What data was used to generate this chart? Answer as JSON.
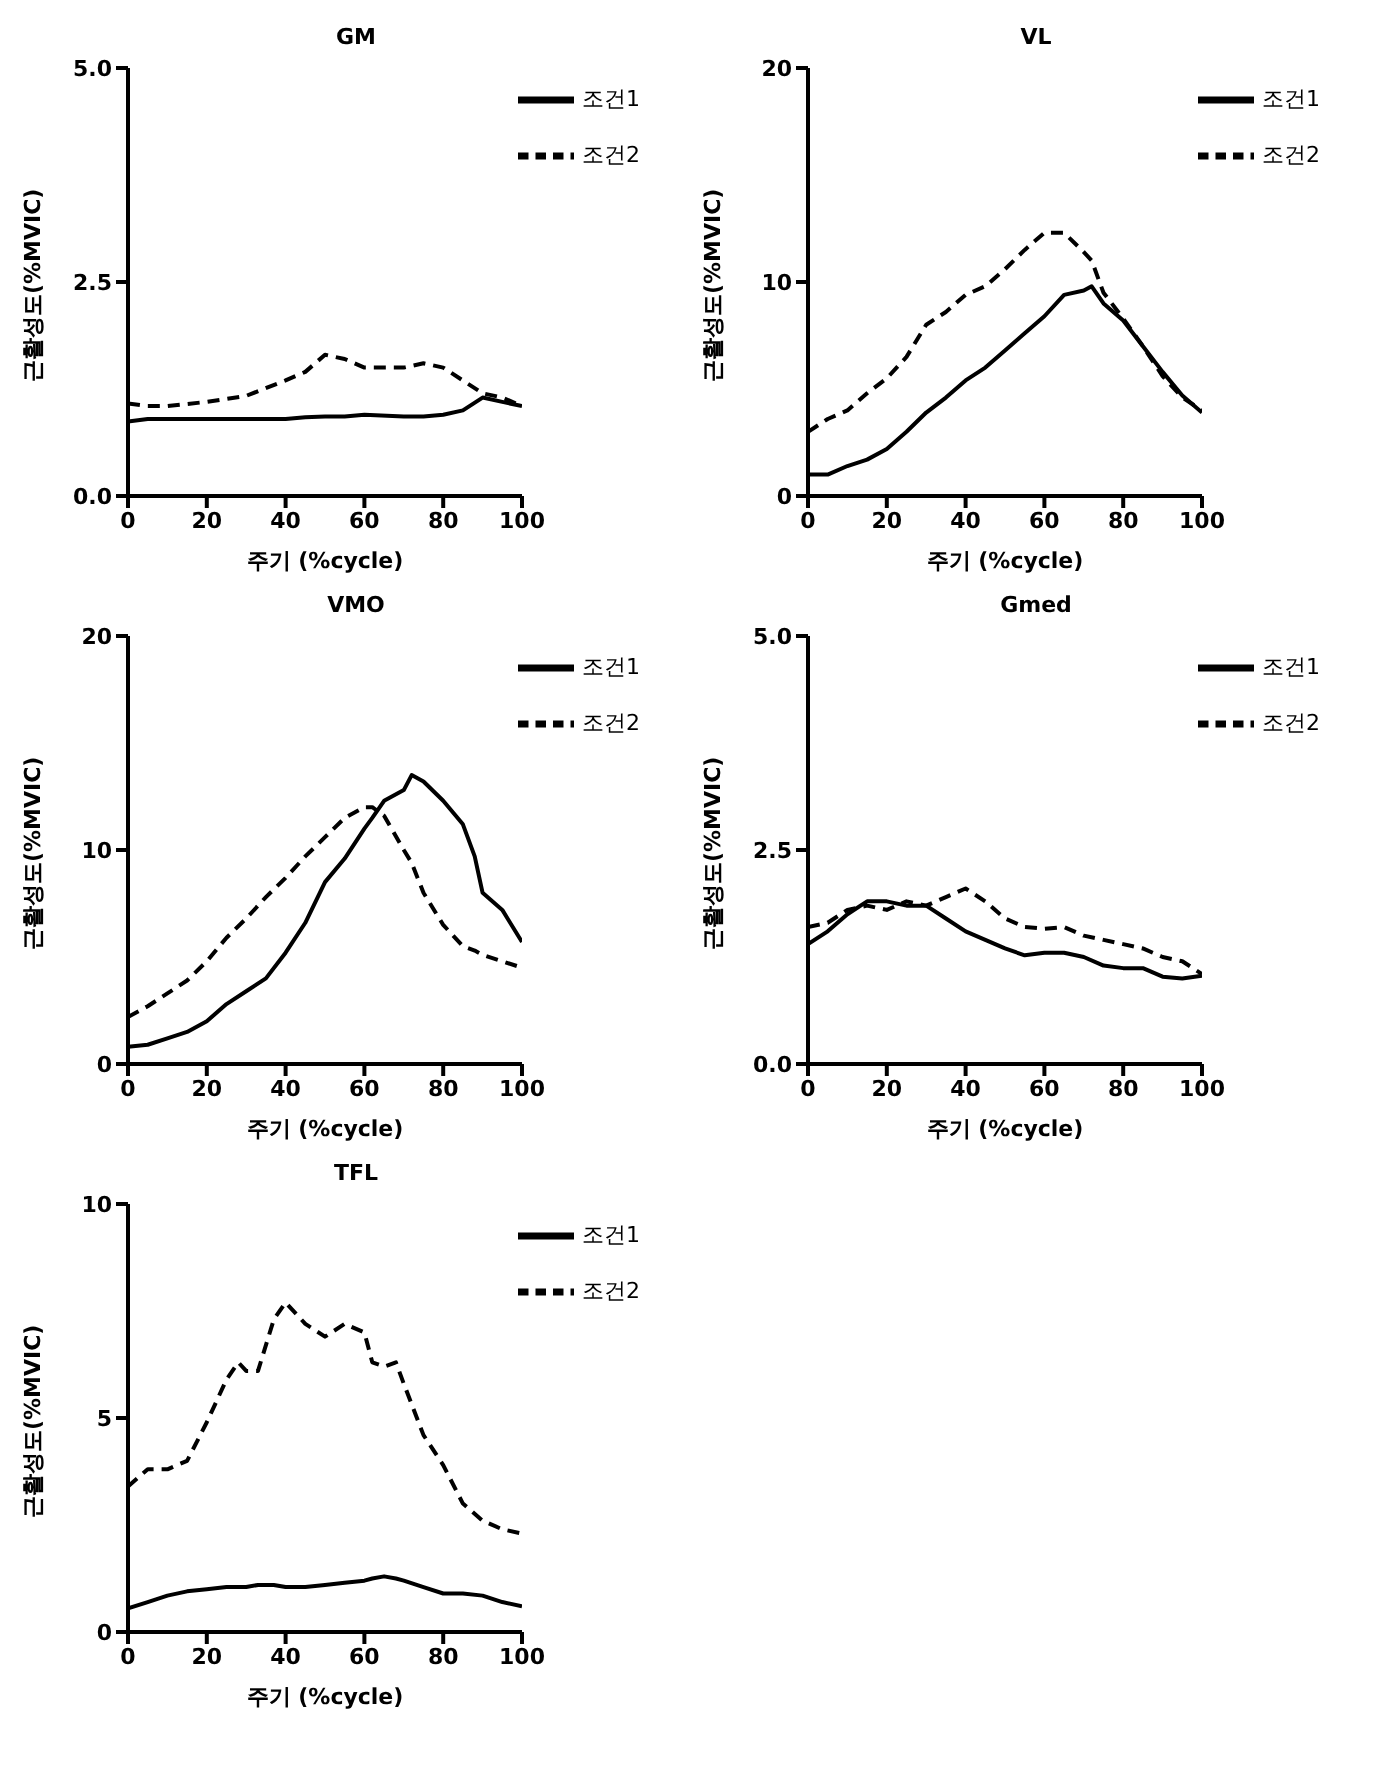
{
  "chart_data": [
    {
      "type": "line",
      "title": "GM",
      "xlabel": "주기 (%cycle)",
      "ylabel": "근활성도(%MVIC)",
      "xlim": [
        0,
        100
      ],
      "xticks": [
        0,
        20,
        40,
        60,
        80,
        100
      ],
      "ylim": [
        0,
        5
      ],
      "yticks": [
        {
          "value": 0,
          "label": "0.0"
        },
        {
          "value": 2.5,
          "label": "2.5"
        },
        {
          "value": 5,
          "label": "5.0"
        }
      ],
      "legend": "top right",
      "marker": "none",
      "x": [
        0,
        5,
        10,
        20,
        30,
        40,
        45,
        50,
        55,
        60,
        70,
        75,
        80,
        85,
        90,
        95,
        100
      ],
      "series": [
        {
          "name": "조건1",
          "color": "#000000",
          "line_style": "solid",
          "values": [
            0.87,
            0.9,
            0.9,
            0.9,
            0.9,
            0.9,
            0.92,
            0.93,
            0.93,
            0.95,
            0.93,
            0.93,
            0.95,
            1.0,
            1.15,
            1.1,
            1.05
          ]
        },
        {
          "name": "조건2",
          "color": "#000000",
          "line_style": "dashed",
          "values": [
            1.08,
            1.05,
            1.05,
            1.1,
            1.17,
            1.35,
            1.45,
            1.65,
            1.6,
            1.5,
            1.5,
            1.55,
            1.5,
            1.35,
            1.2,
            1.15,
            1.05
          ]
        }
      ]
    },
    {
      "type": "line",
      "title": "VL",
      "xlabel": "주기 (%cycle)",
      "ylabel": "근활성도(%MVIC)",
      "xlim": [
        0,
        100
      ],
      "xticks": [
        0,
        20,
        40,
        60,
        80,
        100
      ],
      "ylim": [
        0,
        20
      ],
      "yticks": [
        0,
        10,
        20
      ],
      "legend": "top right",
      "marker": "none",
      "x": [
        0,
        5,
        10,
        15,
        20,
        25,
        30,
        35,
        40,
        45,
        50,
        55,
        60,
        65,
        70,
        72,
        75,
        80,
        85,
        90,
        95,
        100
      ],
      "series": [
        {
          "name": "조건1",
          "color": "#000000",
          "line_style": "solid",
          "values": [
            1.0,
            1.0,
            1.4,
            1.7,
            2.2,
            3.0,
            3.9,
            4.6,
            5.4,
            6.0,
            6.8,
            7.6,
            8.4,
            9.4,
            9.6,
            9.8,
            9.0,
            8.2,
            7.0,
            5.8,
            4.7,
            3.9
          ]
        },
        {
          "name": "조건2",
          "color": "#000000",
          "line_style": "dashed",
          "values": [
            3.0,
            3.6,
            4.0,
            4.8,
            5.5,
            6.5,
            8.0,
            8.6,
            9.4,
            9.8,
            10.6,
            11.5,
            12.3,
            12.3,
            11.4,
            11.0,
            9.5,
            8.3,
            7.0,
            5.6,
            4.6,
            4.0
          ]
        }
      ]
    },
    {
      "type": "line",
      "title": "VMO",
      "xlabel": "주기 (%cycle)",
      "ylabel": "근활성도(%MVIC)",
      "xlim": [
        0,
        100
      ],
      "xticks": [
        0,
        20,
        40,
        60,
        80,
        100
      ],
      "ylim": [
        0,
        20
      ],
      "yticks": [
        0,
        10,
        20
      ],
      "legend": "top right",
      "marker": "none",
      "x": [
        0,
        5,
        10,
        15,
        20,
        25,
        30,
        35,
        40,
        45,
        50,
        55,
        60,
        62,
        65,
        70,
        72,
        75,
        80,
        85,
        88,
        90,
        95,
        100
      ],
      "series": [
        {
          "name": "조건1",
          "color": "#000000",
          "line_style": "solid",
          "values": [
            0.8,
            0.9,
            1.2,
            1.5,
            2.0,
            2.8,
            3.4,
            4.0,
            5.2,
            6.6,
            8.5,
            9.6,
            11.0,
            11.5,
            12.3,
            12.8,
            13.5,
            13.2,
            12.3,
            11.2,
            9.7,
            8.0,
            7.2,
            5.7
          ]
        },
        {
          "name": "조건2",
          "color": "#000000",
          "line_style": "dashed",
          "values": [
            2.2,
            2.7,
            3.3,
            3.9,
            4.8,
            5.9,
            6.8,
            7.8,
            8.7,
            9.7,
            10.6,
            11.5,
            12.0,
            12.0,
            11.6,
            10.0,
            9.4,
            8.0,
            6.5,
            5.5,
            5.3,
            5.1,
            4.8,
            4.5
          ]
        }
      ]
    },
    {
      "type": "line",
      "title": "Gmed",
      "xlabel": "주기 (%cycle)",
      "ylabel": "근활성도(%MVIC)",
      "xlim": [
        0,
        100
      ],
      "xticks": [
        0,
        20,
        40,
        60,
        80,
        100
      ],
      "ylim": [
        0,
        5
      ],
      "yticks": [
        {
          "value": 0,
          "label": "0.0"
        },
        {
          "value": 2.5,
          "label": "2.5"
        },
        {
          "value": 5,
          "label": "5.0"
        }
      ],
      "legend": "top right",
      "marker": "none",
      "x": [
        0,
        5,
        10,
        15,
        20,
        25,
        30,
        35,
        40,
        45,
        50,
        55,
        60,
        65,
        70,
        75,
        80,
        85,
        90,
        95,
        100
      ],
      "series": [
        {
          "name": "조건1",
          "color": "#000000",
          "line_style": "solid",
          "values": [
            1.4,
            1.55,
            1.75,
            1.9,
            1.9,
            1.85,
            1.85,
            1.7,
            1.55,
            1.45,
            1.35,
            1.27,
            1.3,
            1.3,
            1.25,
            1.15,
            1.12,
            1.12,
            1.02,
            1.0,
            1.03
          ]
        },
        {
          "name": "조건2",
          "color": "#000000",
          "line_style": "dashed",
          "values": [
            1.6,
            1.65,
            1.8,
            1.85,
            1.8,
            1.9,
            1.85,
            1.95,
            2.05,
            1.9,
            1.7,
            1.6,
            1.58,
            1.6,
            1.5,
            1.45,
            1.4,
            1.35,
            1.25,
            1.2,
            1.05
          ]
        }
      ]
    },
    {
      "type": "line",
      "title": "TFL",
      "xlabel": "주기 (%cycle)",
      "ylabel": "근활성도(%MVIC)",
      "xlim": [
        0,
        100
      ],
      "xticks": [
        0,
        20,
        40,
        60,
        80,
        100
      ],
      "ylim": [
        0,
        10
      ],
      "yticks": [
        0,
        5,
        10
      ],
      "legend": "top right",
      "marker": "none",
      "x": [
        0,
        5,
        10,
        15,
        20,
        25,
        28,
        30,
        33,
        37,
        40,
        45,
        50,
        55,
        60,
        62,
        65,
        68,
        70,
        75,
        80,
        85,
        90,
        95,
        100
      ],
      "series": [
        {
          "name": "조건1",
          "color": "#000000",
          "line_style": "solid",
          "values": [
            0.55,
            0.7,
            0.85,
            0.95,
            1.0,
            1.05,
            1.05,
            1.05,
            1.1,
            1.1,
            1.05,
            1.05,
            1.1,
            1.15,
            1.2,
            1.25,
            1.3,
            1.25,
            1.2,
            1.05,
            0.9,
            0.9,
            0.85,
            0.7,
            0.6
          ]
        },
        {
          "name": "조건2",
          "color": "#000000",
          "line_style": "dashed",
          "values": [
            3.4,
            3.8,
            3.8,
            4.0,
            4.9,
            5.9,
            6.3,
            6.1,
            6.1,
            7.3,
            7.7,
            7.2,
            6.9,
            7.2,
            7.0,
            6.3,
            6.2,
            6.3,
            5.8,
            4.6,
            3.9,
            3.0,
            2.6,
            2.4,
            2.3
          ]
        }
      ]
    }
  ]
}
